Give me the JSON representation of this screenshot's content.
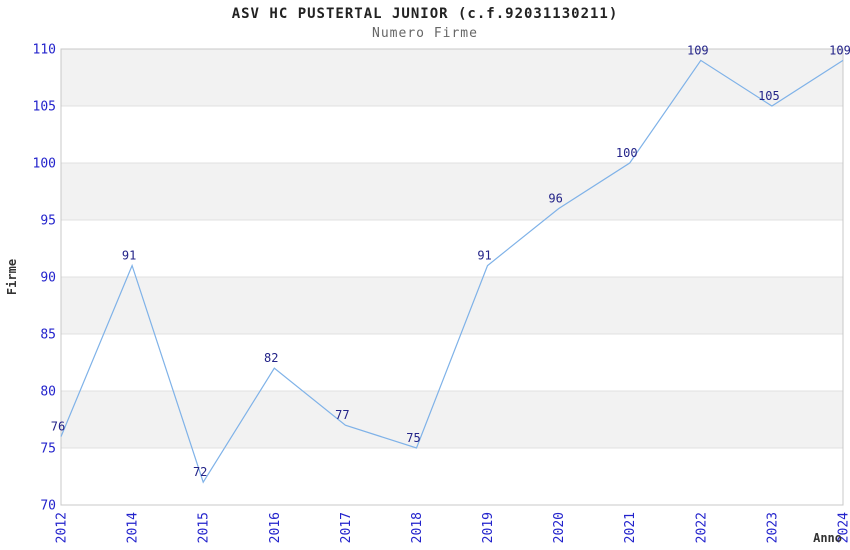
{
  "chart": {
    "title": "ASV HC PUSTERTAL JUNIOR (c.f.92031130211)",
    "subtitle": "Numero Firme",
    "ylabel": "Firme",
    "xlabel": "Anno"
  },
  "chart_data": {
    "type": "line",
    "title": "ASV HC PUSTERTAL JUNIOR (c.f.92031130211)",
    "subtitle": "Numero Firme",
    "xlabel": "Anno",
    "ylabel": "Firme",
    "categories": [
      "2012",
      "2014",
      "2015",
      "2016",
      "2017",
      "2018",
      "2019",
      "2020",
      "2021",
      "2022",
      "2023",
      "2024"
    ],
    "values": [
      76,
      91,
      72,
      82,
      77,
      75,
      91,
      96,
      100,
      109,
      105,
      109
    ],
    "ylim": [
      70,
      110
    ],
    "ytick_step": 5,
    "yticks": [
      70,
      75,
      80,
      85,
      90,
      95,
      100,
      105,
      110
    ],
    "grid": true,
    "legend": "none",
    "band_fill_ranges": [
      [
        75,
        80
      ],
      [
        85,
        90
      ],
      [
        95,
        100
      ],
      [
        105,
        110
      ]
    ],
    "colors": {
      "line": "#7fb2e8",
      "tick_label": "#2323cc",
      "point_label": "#232388",
      "band": "#f2f2f2",
      "grid": "#e0e0e0",
      "border": "#c8c8c8",
      "title": "#222222",
      "subtitle": "#666666",
      "axis_title": "#333333"
    }
  }
}
